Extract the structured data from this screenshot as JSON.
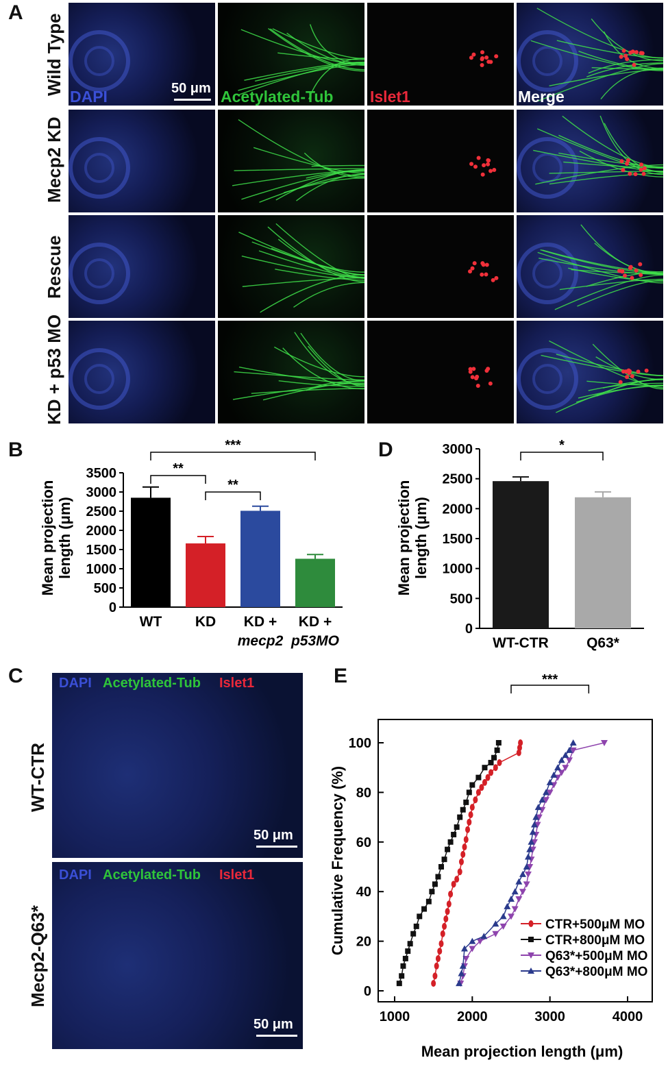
{
  "panel_labels": {
    "a": "A",
    "b": "B",
    "c": "C",
    "d": "D",
    "e": "E"
  },
  "panel_a": {
    "rows": [
      "Wild Type",
      "Mecp2 KD",
      "Rescue",
      "KD + p53 MO"
    ],
    "channels": [
      "DAPI",
      "Acetylated-Tub",
      "Islet1",
      "Merge"
    ],
    "scale": "50 μm"
  },
  "panel_c": {
    "rows": [
      "WT-CTR",
      "Mecp2-Q63*"
    ],
    "channel_labels": [
      "DAPI",
      "Acetylated-Tub",
      "Islet1"
    ],
    "scale": "50 μm"
  },
  "colors": {
    "dapi": "#3a4fd6",
    "tub": "#2fc43a",
    "islet": "#e8283a",
    "merge": "#ffffff"
  },
  "chart_data": [
    {
      "panel": "B",
      "type": "bar",
      "ylabel": "Mean projection length (μm)",
      "categories": [
        "WT",
        "KD",
        "KD + mecp2",
        "KD + p53MO"
      ],
      "values": [
        2850,
        1660,
        2510,
        1260
      ],
      "errors": [
        280,
        180,
        120,
        110
      ],
      "colors": [
        "#000000",
        "#d42027",
        "#2b4a9e",
        "#2e8b3c"
      ],
      "ylim": [
        0,
        3500
      ],
      "yticks": [
        0,
        500,
        1000,
        1500,
        2000,
        2500,
        3000,
        3500
      ],
      "significance": [
        {
          "from": 0,
          "to": 1,
          "label": "**"
        },
        {
          "from": 1,
          "to": 2,
          "label": "**"
        },
        {
          "from": 0,
          "to": 3,
          "label": "***"
        }
      ]
    },
    {
      "panel": "D",
      "type": "bar",
      "ylabel": "Mean projection length (μm)",
      "categories": [
        "WT-CTR",
        "Q63*"
      ],
      "values": [
        2460,
        2190
      ],
      "errors": [
        70,
        90
      ],
      "colors": [
        "#1a1a1a",
        "#a9a9a9"
      ],
      "ylim": [
        0,
        3000
      ],
      "yticks": [
        0,
        500,
        1000,
        1500,
        2000,
        2500,
        3000
      ],
      "significance": [
        {
          "from": 0,
          "to": 1,
          "label": "*"
        }
      ]
    },
    {
      "panel": "E",
      "type": "line",
      "xlabel": "Mean projection length (μm)",
      "ylabel": "Cumulative Frequency (%)",
      "xlim": [
        1000,
        4000
      ],
      "ylim": [
        0,
        100
      ],
      "xticks": [
        1000,
        2000,
        3000,
        4000
      ],
      "yticks": [
        0,
        20,
        40,
        60,
        80,
        100
      ],
      "significance_label": "***",
      "series": [
        {
          "name": "CTR+500μM MO",
          "color": "#d42027",
          "marker": "circle",
          "x": [
            1500,
            1520,
            1540,
            1560,
            1580,
            1600,
            1620,
            1640,
            1660,
            1680,
            1700,
            1720,
            1760,
            1800,
            1840,
            1860,
            1880,
            1900,
            1920,
            1940,
            1960,
            1980,
            2000,
            2040,
            2080,
            2120,
            2160,
            2200,
            2240,
            2300,
            2350,
            2600,
            2610,
            2620
          ],
          "y": [
            3,
            6,
            10,
            13,
            16,
            19,
            23,
            26,
            29,
            32,
            35,
            39,
            43,
            45,
            48,
            52,
            55,
            58,
            61,
            65,
            68,
            71,
            74,
            77,
            80,
            82,
            84,
            86,
            88,
            90,
            92,
            96,
            98,
            100
          ]
        },
        {
          "name": "CTR+800μM MO",
          "color": "#111111",
          "marker": "square",
          "x": [
            1060,
            1090,
            1110,
            1140,
            1170,
            1200,
            1240,
            1280,
            1320,
            1380,
            1440,
            1480,
            1520,
            1560,
            1600,
            1640,
            1680,
            1720,
            1760,
            1800,
            1840,
            1880,
            1920,
            1960,
            2000,
            2080,
            2160,
            2240,
            2280,
            2320,
            2340
          ],
          "y": [
            3,
            6,
            10,
            13,
            16,
            19,
            23,
            26,
            30,
            33,
            36,
            40,
            43,
            46,
            50,
            53,
            57,
            60,
            63,
            66,
            70,
            73,
            76,
            80,
            83,
            86,
            90,
            92,
            94,
            97,
            100
          ]
        },
        {
          "name": "Q63*+500μM MO",
          "color": "#8e44ad",
          "marker": "triangle-down",
          "x": [
            1850,
            1880,
            1900,
            1920,
            2000,
            2100,
            2300,
            2400,
            2500,
            2550,
            2600,
            2650,
            2700,
            2720,
            2740,
            2760,
            2780,
            2800,
            2820,
            2840,
            2860,
            2900,
            2950,
            3000,
            3050,
            3100,
            3150,
            3200,
            3250,
            3300,
            3700
          ],
          "y": [
            3,
            6,
            10,
            13,
            17,
            20,
            23,
            26,
            30,
            33,
            37,
            40,
            43,
            47,
            50,
            53,
            57,
            60,
            63,
            67,
            70,
            73,
            77,
            80,
            83,
            86,
            88,
            90,
            93,
            97,
            100
          ]
        },
        {
          "name": "Q63*+800μM MO",
          "color": "#2a3a8c",
          "marker": "triangle-up",
          "x": [
            1830,
            1860,
            1880,
            1900,
            2000,
            2150,
            2300,
            2400,
            2450,
            2500,
            2550,
            2600,
            2650,
            2700,
            2720,
            2740,
            2760,
            2780,
            2800,
            2820,
            2850,
            2900,
            2950,
            3000,
            3050,
            3100,
            3150,
            3200,
            3250,
            3300
          ],
          "y": [
            3,
            7,
            10,
            17,
            20,
            22,
            27,
            30,
            34,
            37,
            40,
            44,
            47,
            50,
            54,
            57,
            60,
            64,
            67,
            70,
            74,
            77,
            80,
            84,
            87,
            90,
            93,
            95,
            97,
            100
          ]
        }
      ]
    }
  ]
}
